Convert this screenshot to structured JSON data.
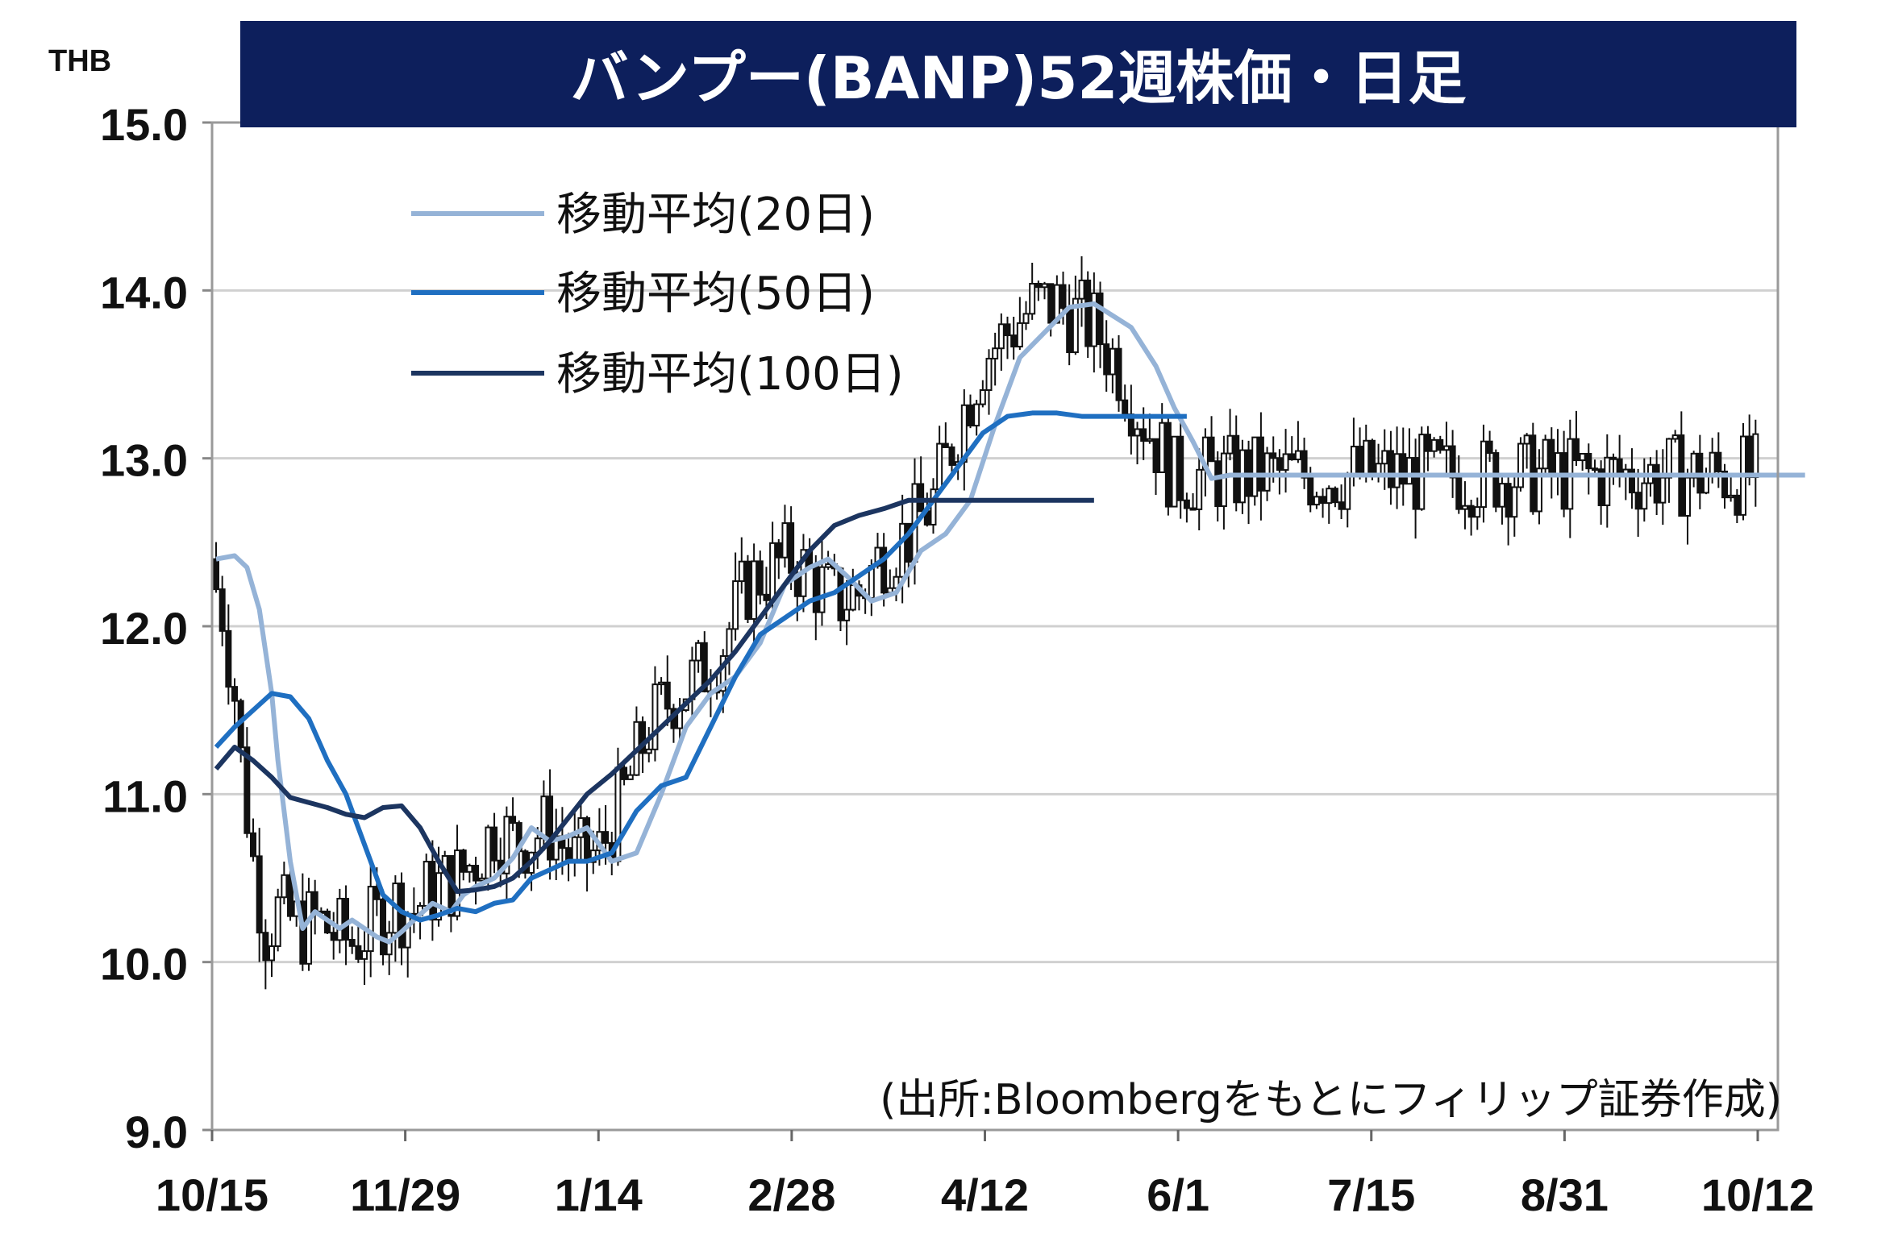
{
  "chart_data": {
    "type": "candlestick",
    "title": "バンプー(BANP)52週株価・日足",
    "unit_label": "THB",
    "source_note": "(出所:Bloombergをもとにフィリップ証券作成)",
    "ylim": [
      9.0,
      15.0
    ],
    "y_ticks": [
      "9.0",
      "10.0",
      "11.0",
      "12.0",
      "13.0",
      "14.0",
      "15.0"
    ],
    "x_tick_labels": [
      "10/15",
      "11/29",
      "1/14",
      "2/28",
      "4/12",
      "6/1",
      "7/15",
      "8/31",
      "10/12"
    ],
    "grid": true,
    "legend_position": "top-left",
    "colors": {
      "title_bg": "#0d1f5c",
      "ma20": "#95b3d7",
      "ma50": "#1f6fc1",
      "ma100": "#1c3560",
      "candle": "#111111",
      "grid": "#d0d0d0"
    },
    "series": [
      {
        "name": "移動平均(20日)",
        "key": "ma20",
        "x": [
          0,
          3,
          5,
          7,
          9,
          10,
          12,
          14,
          16,
          18,
          20,
          22,
          24,
          26,
          28,
          30,
          32,
          35,
          38,
          40,
          42,
          45,
          48,
          51,
          54,
          57,
          60,
          64,
          68,
          72,
          76,
          80,
          84,
          88,
          92,
          96,
          99,
          102,
          106,
          110,
          114,
          118,
          122,
          126,
          130,
          134,
          138,
          142,
          145,
          148,
          152,
          155,
          158,
          161,
          164,
          168,
          172,
          176,
          180,
          184,
          188,
          192,
          196,
          199,
          202,
          205,
          208,
          212,
          216,
          220,
          224,
          228,
          232,
          236,
          240,
          244,
          248,
          252,
          256,
          257
        ],
        "values": [
          12.4,
          12.42,
          12.35,
          12.1,
          11.6,
          11.2,
          10.6,
          10.2,
          10.3,
          10.25,
          10.2,
          10.25,
          10.2,
          10.15,
          10.12,
          10.18,
          10.25,
          10.35,
          10.3,
          10.4,
          10.45,
          10.5,
          10.62,
          10.8,
          10.72,
          10.75,
          10.8,
          10.6,
          10.65,
          11.0,
          11.4,
          11.6,
          11.7,
          11.9,
          12.25,
          12.35,
          12.4,
          12.3,
          12.15,
          12.2,
          12.45,
          12.55,
          12.75,
          13.2,
          13.6,
          13.75,
          13.9,
          13.92,
          13.85,
          13.78,
          13.55,
          13.3,
          13.1,
          12.88,
          12.9,
          12.9,
          12.9,
          12.9,
          12.9,
          12.9,
          12.9,
          12.9,
          12.9,
          12.9,
          12.9,
          12.9,
          12.9,
          12.9,
          12.9,
          12.9,
          12.9,
          12.9,
          12.9,
          12.9,
          12.9,
          12.9,
          12.9,
          12.9,
          12.9,
          12.9
        ]
      },
      {
        "name": "移動平均(50日)",
        "key": "ma50",
        "x": [
          0,
          3,
          6,
          9,
          12,
          15,
          18,
          21,
          24,
          27,
          30,
          33,
          36,
          39,
          42,
          45,
          48,
          51,
          54,
          57,
          60,
          64,
          68,
          72,
          76,
          80,
          84,
          88,
          92,
          96,
          100,
          104,
          108,
          112,
          116,
          120,
          124,
          128,
          132,
          136,
          140,
          143,
          146,
          149,
          152,
          155,
          157
        ],
        "values": [
          11.28,
          11.4,
          11.5,
          11.6,
          11.58,
          11.45,
          11.2,
          11.0,
          10.7,
          10.4,
          10.3,
          10.25,
          10.28,
          10.32,
          10.3,
          10.35,
          10.37,
          10.5,
          10.55,
          10.6,
          10.6,
          10.65,
          10.9,
          11.05,
          11.1,
          11.4,
          11.7,
          11.95,
          12.05,
          12.15,
          12.2,
          12.3,
          12.4,
          12.55,
          12.75,
          12.95,
          13.15,
          13.25,
          13.27,
          13.27,
          13.25,
          13.25,
          13.25,
          13.25,
          13.25,
          13.25,
          13.25
        ]
      },
      {
        "name": "移動平均(100日)",
        "key": "ma100",
        "x": [
          0,
          3,
          6,
          9,
          12,
          15,
          18,
          21,
          24,
          27,
          30,
          33,
          36,
          39,
          42,
          45,
          48,
          51,
          54,
          57,
          60,
          64,
          68,
          72,
          76,
          80,
          84,
          88,
          92,
          96,
          100,
          104,
          108,
          112,
          116,
          120,
          124,
          128,
          132,
          136,
          140,
          142
        ],
        "values": [
          11.15,
          11.28,
          11.2,
          11.1,
          10.98,
          10.95,
          10.92,
          10.88,
          10.86,
          10.92,
          10.93,
          10.8,
          10.6,
          10.42,
          10.43,
          10.45,
          10.5,
          10.6,
          10.72,
          10.86,
          11.0,
          11.12,
          11.26,
          11.4,
          11.54,
          11.68,
          11.85,
          12.05,
          12.25,
          12.45,
          12.6,
          12.66,
          12.7,
          12.75,
          12.75,
          12.75,
          12.75,
          12.75,
          12.75,
          12.75,
          12.75,
          12.75
        ]
      }
    ]
  }
}
